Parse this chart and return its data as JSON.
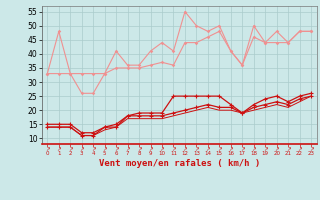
{
  "bg_color": "#cce8e8",
  "grid_color": "#aacccc",
  "line_color_light": "#f09090",
  "line_color_dark": "#cc1111",
  "xlabel": "Vent moyen/en rafales ( km/h )",
  "xlabel_color": "#cc1111",
  "x": [
    0,
    1,
    2,
    3,
    4,
    5,
    6,
    7,
    8,
    9,
    10,
    11,
    12,
    13,
    14,
    15,
    16,
    17,
    18,
    19,
    20,
    21,
    22,
    23
  ],
  "series_light1": [
    33,
    48,
    33,
    26,
    26,
    33,
    41,
    36,
    36,
    41,
    44,
    41,
    55,
    50,
    48,
    50,
    41,
    36,
    50,
    44,
    48,
    44,
    48,
    48
  ],
  "series_light2": [
    33,
    33,
    33,
    33,
    33,
    33,
    35,
    35,
    35,
    36,
    37,
    36,
    44,
    44,
    46,
    48,
    41,
    36,
    46,
    44,
    44,
    44,
    48,
    48
  ],
  "series_dark1": [
    15,
    15,
    15,
    12,
    12,
    14,
    15,
    18,
    19,
    19,
    19,
    25,
    25,
    25,
    25,
    25,
    22,
    19,
    22,
    24,
    25,
    23,
    25,
    26
  ],
  "series_dark2": [
    14,
    14,
    14,
    11,
    11,
    14,
    14,
    18,
    18,
    18,
    18,
    19,
    20,
    21,
    22,
    21,
    21,
    19,
    21,
    22,
    23,
    22,
    24,
    25
  ],
  "series_dark3": [
    14,
    14,
    14,
    11,
    11,
    13,
    14,
    17,
    17,
    17,
    17,
    18,
    19,
    20,
    21,
    20,
    20,
    19,
    20,
    21,
    22,
    21,
    23,
    25
  ],
  "yticks": [
    10,
    15,
    20,
    25,
    30,
    35,
    40,
    45,
    50,
    55
  ],
  "ylim": [
    8,
    57
  ],
  "xlim": [
    -0.5,
    23.5
  ]
}
